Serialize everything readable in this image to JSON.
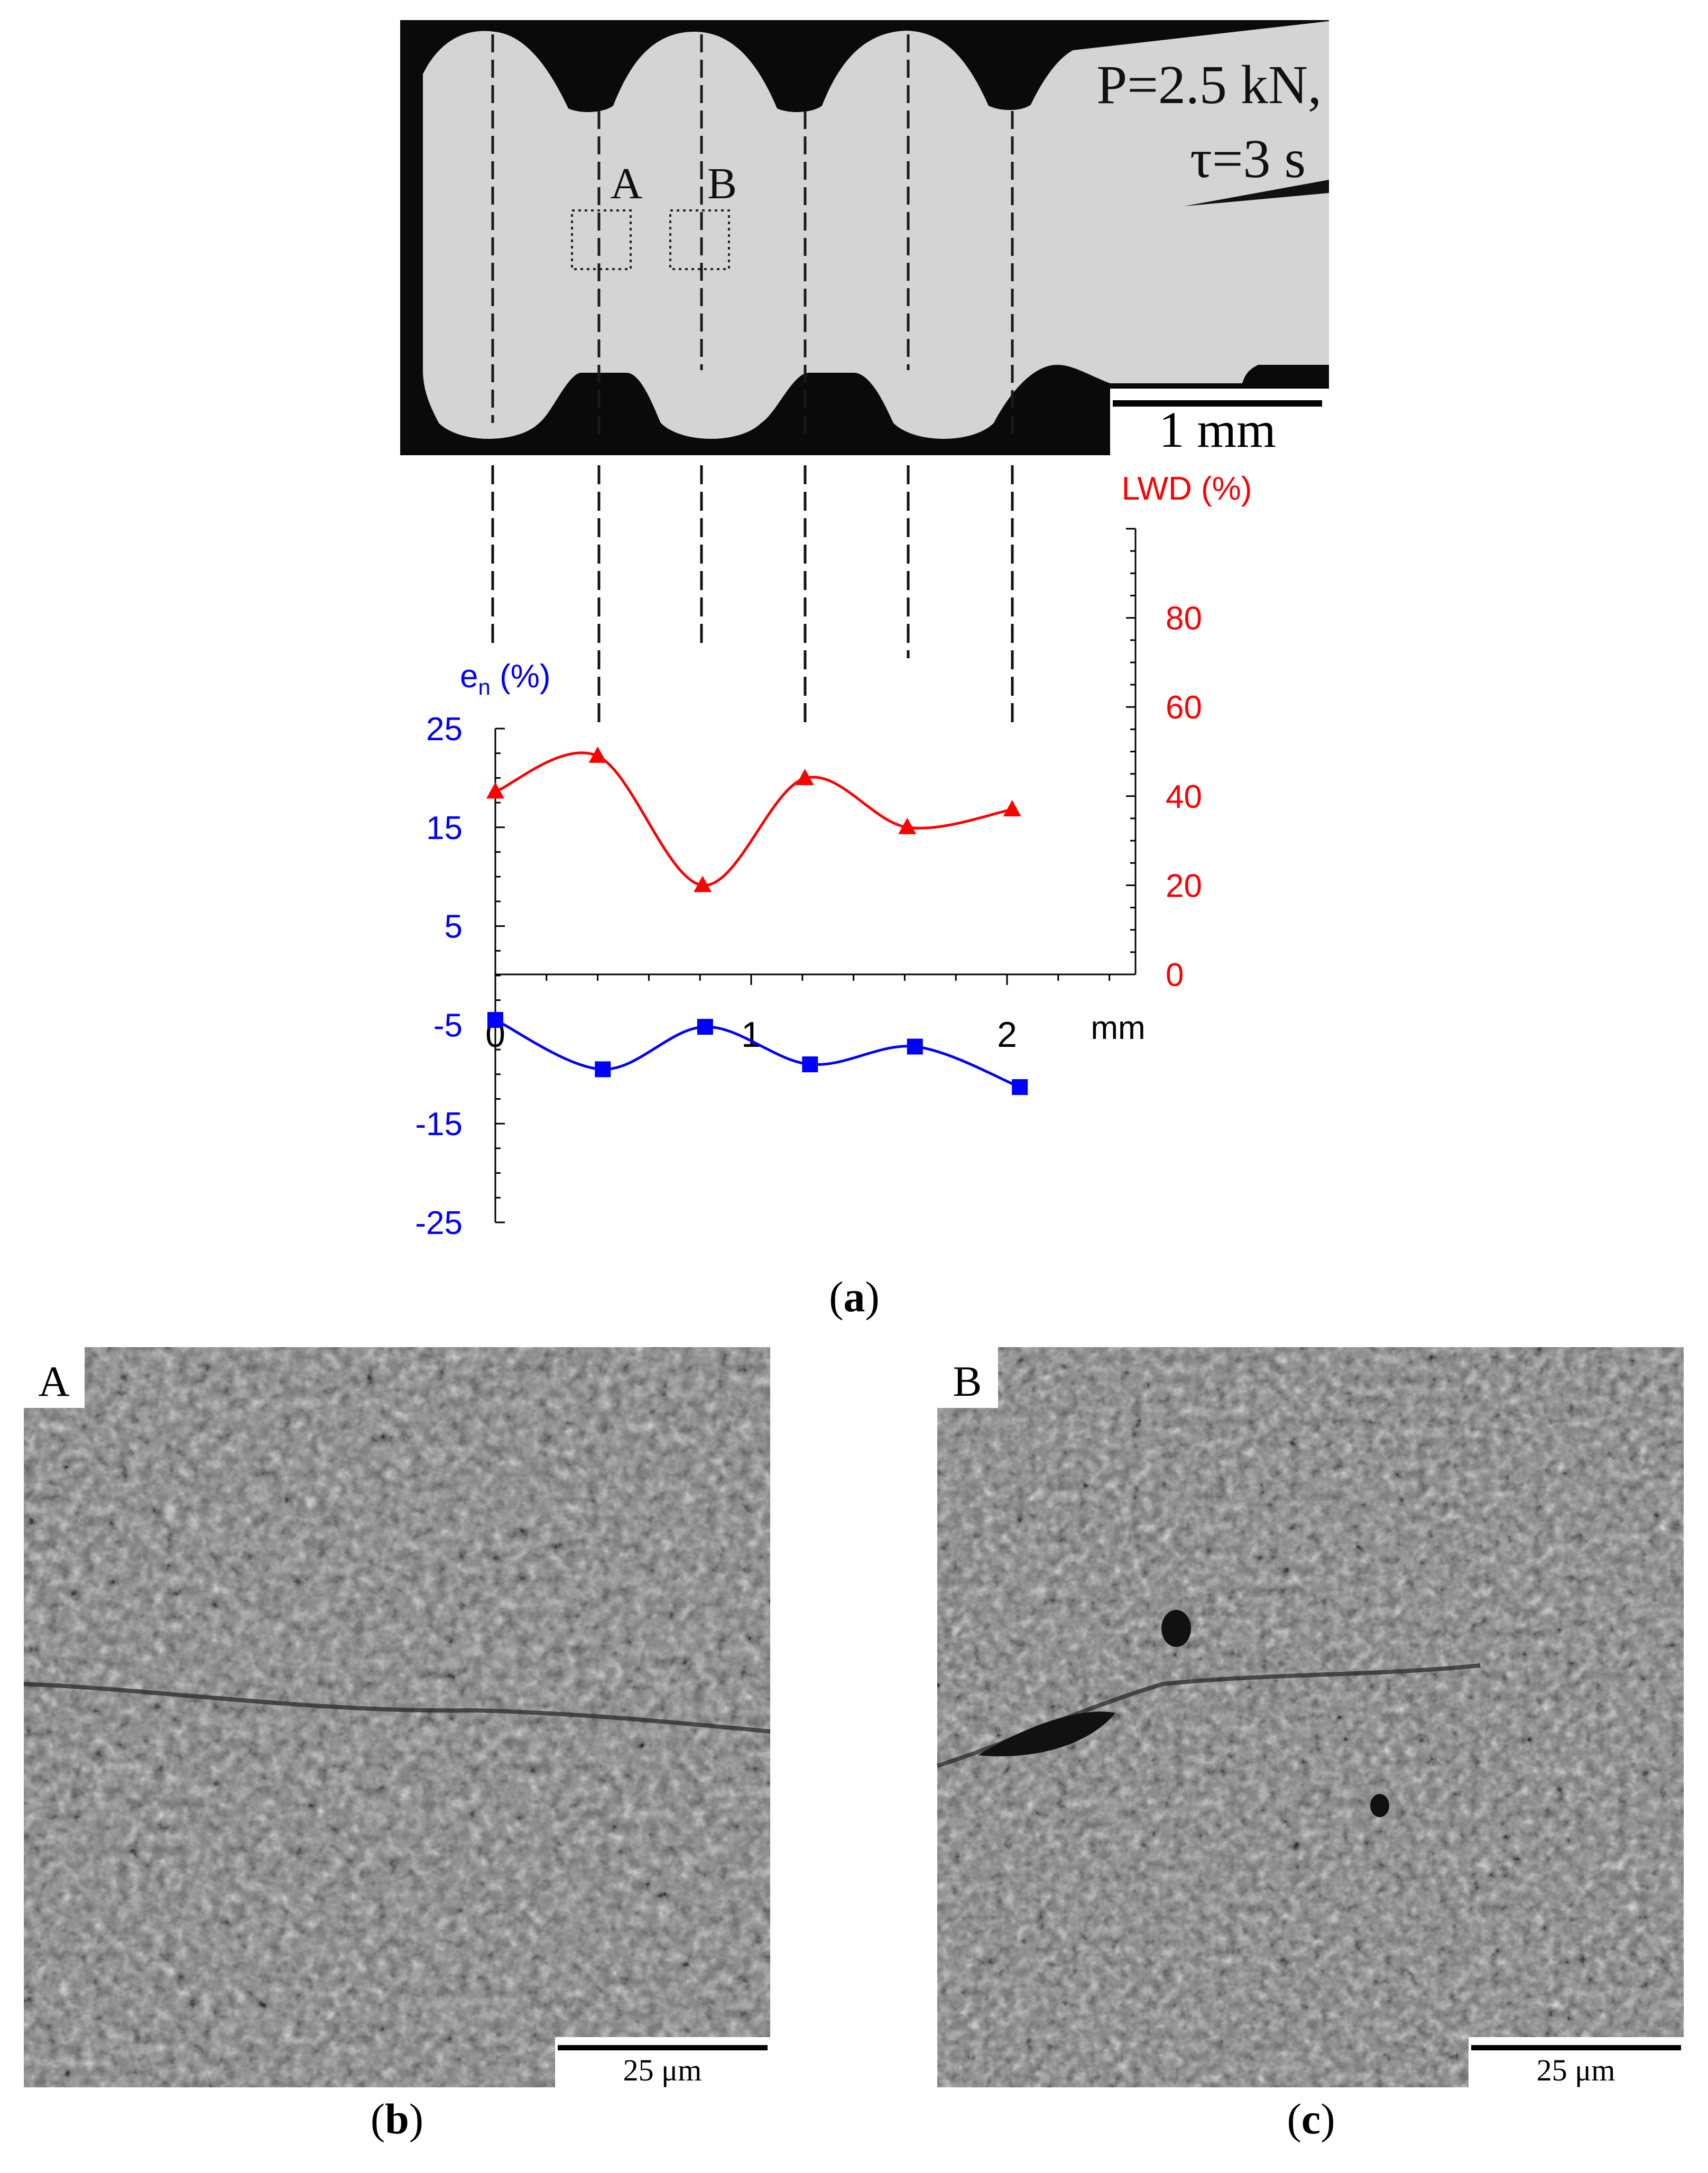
{
  "micrograph": {
    "load_label": "P=2.5 kN,",
    "time_label": "τ=3 s",
    "region_a_label": "A",
    "region_b_label": "B",
    "scale_bar_label": "1 mm"
  },
  "chart_data": {
    "type": "line",
    "x_unit_label": "mm",
    "x_ticks": [
      "0",
      "1",
      "2"
    ],
    "left_axis_ticks": [
      "25",
      "15",
      "5",
      "-5",
      "-15",
      "-25"
    ],
    "right_axis_ticks": [
      "80",
      "60",
      "40",
      "20",
      "0"
    ],
    "left_axis": {
      "label_base": "e",
      "label_sub": "n",
      "label_unit": " (%)",
      "range": [
        -25,
        25
      ],
      "color": "#0000ff"
    },
    "right_axis": {
      "label": "LWD (%)",
      "range": [
        0,
        100
      ],
      "color": "#ff0000"
    },
    "xlim": [
      0,
      2.5
    ],
    "series": [
      {
        "axis": "right",
        "color": "#ff0000",
        "marker": "triangle",
        "x": [
          0.0,
          0.4,
          0.81,
          1.21,
          1.61,
          2.02
        ],
        "y": [
          41,
          49,
          20,
          44,
          33,
          37
        ]
      },
      {
        "axis": "left",
        "color": "#0000ff",
        "marker": "square",
        "x": [
          0.0,
          0.42,
          0.82,
          1.23,
          1.64,
          2.05
        ],
        "y": [
          -4.5,
          -9.5,
          -5.2,
          -9.0,
          -7.2,
          -11.3
        ]
      }
    ]
  },
  "panel_labels": {
    "a": "a",
    "b": "b",
    "c": "c"
  },
  "sem": {
    "left_label": "A",
    "right_label": "B",
    "left_scale": "25 μm",
    "right_scale": "25 μm"
  }
}
